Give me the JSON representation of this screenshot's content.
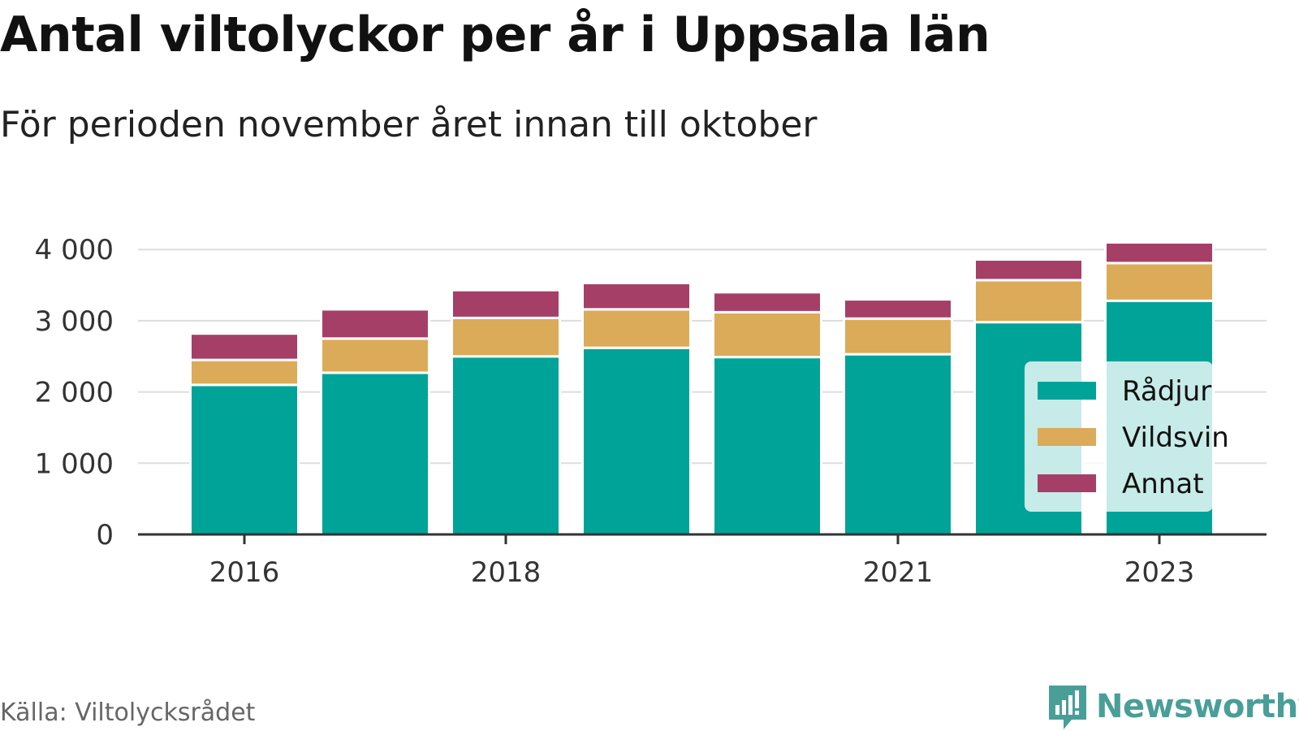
{
  "title": "Antal viltolyckor per år i Uppsala län",
  "subtitle": "För perioden november året innan till oktober",
  "source": "Källa: Viltolycksrådet",
  "brand": {
    "name": "Newsworthy",
    "icon": "newsworthy-logo-icon",
    "color": "#4a9e98"
  },
  "chart_data": {
    "type": "bar",
    "stacked": true,
    "categories": [
      "2016",
      "2017",
      "2018",
      "2019",
      "2020",
      "2021",
      "2022",
      "2023"
    ],
    "x_tick_labels": [
      "2016",
      "2018",
      "2021",
      "2023"
    ],
    "y_ticks": [
      0,
      1000,
      2000,
      3000,
      4000
    ],
    "y_tick_labels": [
      "0",
      "1 000",
      "2 000",
      "3 000",
      "4 000"
    ],
    "ylim": [
      0,
      4100
    ],
    "grid": "horizontal",
    "legend_position": "bottom-right",
    "series": [
      {
        "name": "Rådjur",
        "color": "#00a398",
        "values": [
          2100,
          2270,
          2500,
          2620,
          2490,
          2530,
          2980,
          3280
        ]
      },
      {
        "name": "Vildsvin",
        "color": "#dbab59",
        "values": [
          350,
          480,
          540,
          540,
          630,
          500,
          590,
          530
        ]
      },
      {
        "name": "Annat",
        "color": "#a63f68",
        "values": [
          370,
          410,
          390,
          370,
          280,
          270,
          290,
          290
        ]
      }
    ]
  }
}
